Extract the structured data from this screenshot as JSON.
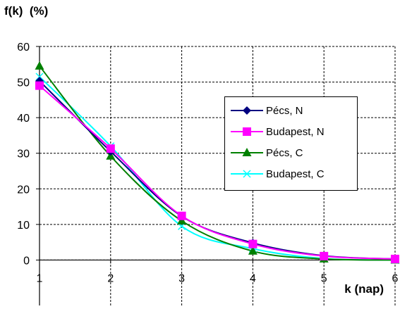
{
  "chart_data": {
    "type": "line",
    "title": "",
    "ylabel": "f(k)  (%)",
    "xlabel": "k (nap)",
    "xlim": [
      1,
      6
    ],
    "ylim": [
      -10,
      60
    ],
    "x_ticks": [
      "1",
      "2",
      "3",
      "4",
      "5",
      "6"
    ],
    "y_ticks": [
      "0",
      "10",
      "20",
      "30",
      "40",
      "50",
      "60"
    ],
    "grid": true,
    "legend_position": "right",
    "series": [
      {
        "name": "Pécs, N",
        "color": "#000080",
        "marker": "diamond",
        "x": [
          1,
          2,
          3,
          4,
          5,
          6
        ],
        "y": [
          50.3,
          30.5,
          12.3,
          4.8,
          1.2,
          0.3
        ]
      },
      {
        "name": "Budapest, N",
        "color": "#ff00ff",
        "marker": "square",
        "x": [
          1,
          2,
          3,
          4,
          5,
          6
        ],
        "y": [
          49.0,
          31.3,
          12.4,
          4.5,
          1.1,
          0.3
        ]
      },
      {
        "name": "Pécs, C",
        "color": "#008000",
        "marker": "triangle",
        "x": [
          1,
          2,
          3,
          4,
          5,
          6
        ],
        "y": [
          54.5,
          29.2,
          11.0,
          2.5,
          0.3,
          0.0
        ]
      },
      {
        "name": "Budapest, C",
        "color": "#00ffff",
        "marker": "x",
        "x": [
          1,
          2,
          3,
          4,
          5,
          6
        ],
        "y": [
          51.5,
          32.0,
          9.5,
          3.2,
          0.4,
          0.0
        ]
      }
    ]
  }
}
